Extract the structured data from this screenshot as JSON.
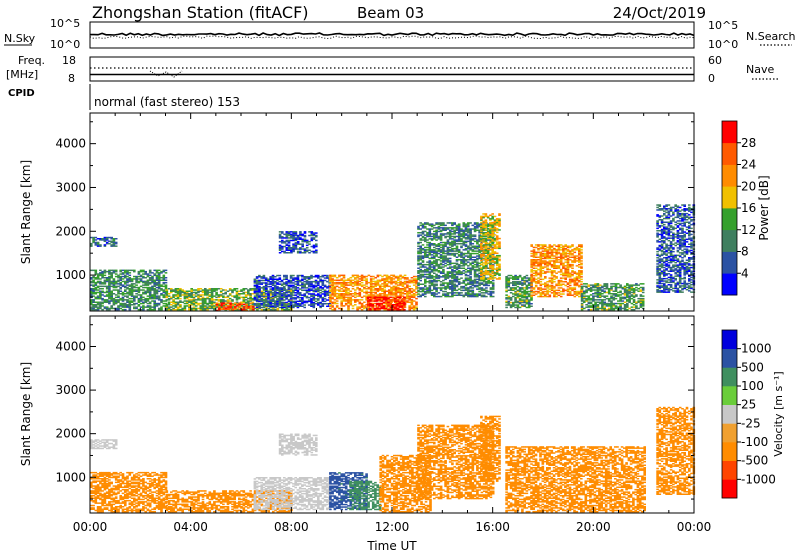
{
  "header": {
    "station": "Zhongshan Station (fitACF)",
    "beam": "Beam 03",
    "date": "24/Oct/2019"
  },
  "nsky": {
    "left_label": "N.Sky",
    "right_label": "N.Search",
    "top_tick": "10^5",
    "bottom_tick": "10^0"
  },
  "freq": {
    "label_top": "Freq.",
    "label_unit": "[MHz]",
    "left_ticks": [
      "18",
      "8"
    ],
    "right_ticks": [
      "60",
      "0"
    ],
    "right_label": "Nave"
  },
  "cpid": {
    "label": "CPID",
    "value": "normal (fast stereo) 153"
  },
  "colors": {
    "power": [
      "#0000ff",
      "#2b52a3",
      "#3f7f5f",
      "#35a02c",
      "#f0c000",
      "#ff8c00",
      "#ff5a00",
      "#ff0000"
    ],
    "velocity": [
      "#ff0000",
      "#ff4500",
      "#ff8c00",
      "#f0a030",
      "#c8c8c8",
      "#6acd3a",
      "#3f8f5f",
      "#2b52a3",
      "#0000dd"
    ]
  },
  "chart_data": [
    {
      "type": "heatmap",
      "name": "power",
      "ylabel": "Slant Range [km]",
      "xlabel": "",
      "y_ticks": [
        1000,
        2000,
        3000,
        4000
      ],
      "ylim": [
        180,
        4700
      ],
      "x_ticks": [
        "00:00",
        "04:00",
        "08:00",
        "12:00",
        "16:00",
        "20:00",
        "00:00"
      ],
      "xlim_hours": [
        0,
        24
      ],
      "colorbar": {
        "label": "Power [dB]",
        "ticks": [
          "4",
          "8",
          "12",
          "16",
          "20",
          "24",
          "28"
        ],
        "range": [
          0,
          32
        ]
      },
      "regions": [
        {
          "t": [
            0.0,
            1.0
          ],
          "r": [
            1650,
            1850
          ],
          "v": 8
        },
        {
          "t": [
            0.0,
            3.0
          ],
          "r": [
            200,
            1100
          ],
          "v": 11
        },
        {
          "t": [
            3.0,
            8.0
          ],
          "r": [
            200,
            700
          ],
          "v": 14
        },
        {
          "t": [
            5.0,
            6.5
          ],
          "r": [
            180,
            350
          ],
          "v": 26
        },
        {
          "t": [
            6.5,
            9.5
          ],
          "r": [
            250,
            1000
          ],
          "v": 6
        },
        {
          "t": [
            7.5,
            9.0
          ],
          "r": [
            1500,
            2000
          ],
          "v": 6
        },
        {
          "t": [
            9.5,
            13.0
          ],
          "r": [
            200,
            1000
          ],
          "v": 22
        },
        {
          "t": [
            11.0,
            12.5
          ],
          "r": [
            200,
            500
          ],
          "v": 30
        },
        {
          "t": [
            13.0,
            16.0
          ],
          "r": [
            500,
            2200
          ],
          "v": 10
        },
        {
          "t": [
            15.5,
            16.3
          ],
          "r": [
            900,
            2400
          ],
          "v": 18
        },
        {
          "t": [
            16.5,
            17.5
          ],
          "r": [
            250,
            1000
          ],
          "v": 12
        },
        {
          "t": [
            17.5,
            19.5
          ],
          "r": [
            500,
            1700
          ],
          "v": 22
        },
        {
          "t": [
            19.5,
            22.0
          ],
          "r": [
            200,
            800
          ],
          "v": 12
        },
        {
          "t": [
            22.5,
            24.0
          ],
          "r": [
            600,
            2600
          ],
          "v": 7
        }
      ]
    },
    {
      "type": "heatmap",
      "name": "velocity",
      "ylabel": "Slant Range [km]",
      "xlabel": "Time UT",
      "y_ticks": [
        1000,
        2000,
        3000,
        4000
      ],
      "ylim": [
        180,
        4700
      ],
      "x_ticks": [
        "00:00",
        "04:00",
        "08:00",
        "12:00",
        "16:00",
        "20:00",
        "00:00"
      ],
      "xlim_hours": [
        0,
        24
      ],
      "colorbar": {
        "label": "Velocity [m s⁻¹]",
        "ticks": [
          "-1000",
          "-500",
          "-100",
          "-25",
          "25",
          "100",
          "500",
          "1000"
        ]
      },
      "regions": [
        {
          "t": [
            0.0,
            1.0
          ],
          "r": [
            1650,
            1850
          ],
          "v": -10
        },
        {
          "t": [
            0.0,
            3.0
          ],
          "r": [
            200,
            1100
          ],
          "v": -200
        },
        {
          "t": [
            3.0,
            8.0
          ],
          "r": [
            200,
            700
          ],
          "v": -200
        },
        {
          "t": [
            6.5,
            9.5
          ],
          "r": [
            250,
            1000
          ],
          "v": 0
        },
        {
          "t": [
            7.5,
            9.0
          ],
          "r": [
            1500,
            2000
          ],
          "v": 0
        },
        {
          "t": [
            9.5,
            11.0
          ],
          "r": [
            250,
            1100
          ],
          "v": 700
        },
        {
          "t": [
            10.3,
            11.5
          ],
          "r": [
            250,
            900
          ],
          "v": 200
        },
        {
          "t": [
            11.5,
            13.5
          ],
          "r": [
            200,
            1500
          ],
          "v": -300
        },
        {
          "t": [
            13.0,
            16.0
          ],
          "r": [
            500,
            2200
          ],
          "v": -300
        },
        {
          "t": [
            15.5,
            16.3
          ],
          "r": [
            900,
            2400
          ],
          "v": -300
        },
        {
          "t": [
            16.5,
            22.0
          ],
          "r": [
            200,
            1700
          ],
          "v": -300
        },
        {
          "t": [
            22.5,
            24.0
          ],
          "r": [
            600,
            2600
          ],
          "v": -300
        }
      ]
    }
  ]
}
